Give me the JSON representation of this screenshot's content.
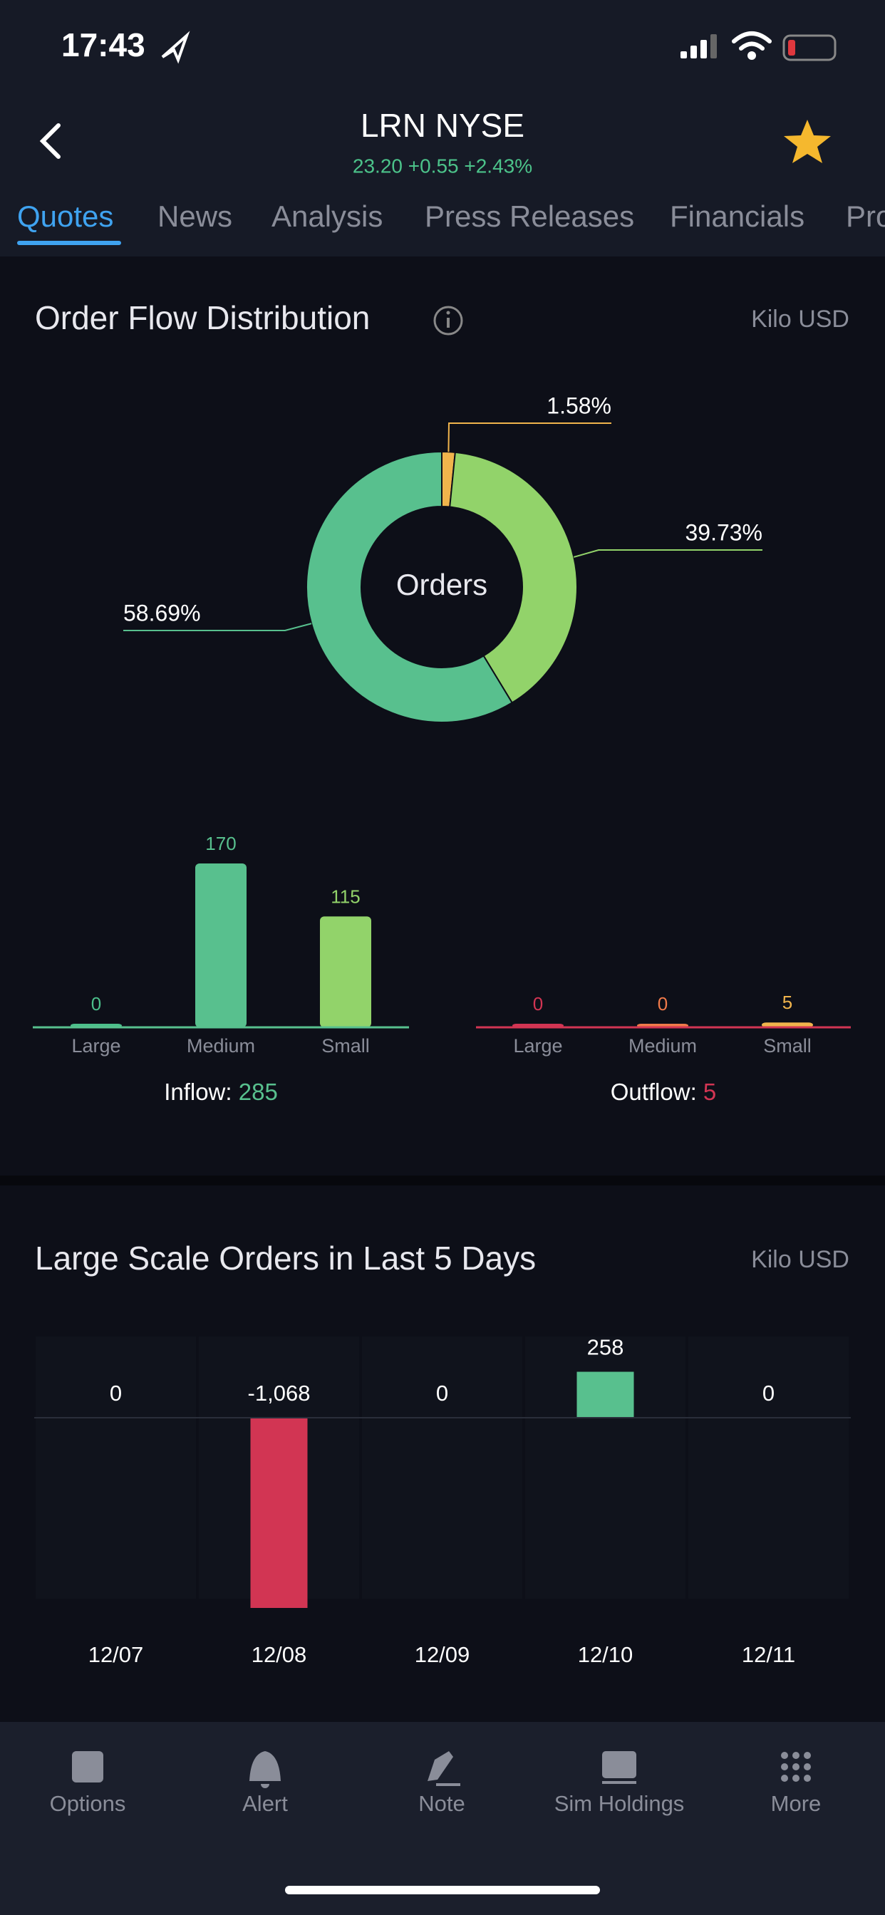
{
  "status_bar": {
    "time": "17:43"
  },
  "header": {
    "title": "LRN NYSE",
    "quote": "23.20 +0.55 +2.43%"
  },
  "tabs": [
    "Quotes",
    "News",
    "Analysis",
    "Press Releases",
    "Financials",
    "Pro"
  ],
  "order_flow": {
    "title": "Order Flow Distribution",
    "unit": "Kilo USD",
    "donut": {
      "type": "pie",
      "center_label": "Orders",
      "values": [
        1.58,
        39.73,
        58.69
      ],
      "value_labels": [
        "1.58%",
        "39.73%",
        "58.69%"
      ],
      "colors": [
        "#f0b44c",
        "#92d36a",
        "#58c08e"
      ]
    },
    "inflow": {
      "type": "bar",
      "categories": [
        "Large",
        "Medium",
        "Small"
      ],
      "values": [
        0,
        170,
        115
      ],
      "colors": [
        "#4cbf8b",
        "#58c08e",
        "#92d36a"
      ],
      "label": "Inflow:",
      "total": 285,
      "total_color": "#58c08e"
    },
    "outflow": {
      "type": "bar",
      "categories": [
        "Large",
        "Medium",
        "Small"
      ],
      "values": [
        0,
        0,
        5
      ],
      "colors": [
        "#d23553",
        "#f07a4a",
        "#f0b44c"
      ],
      "label": "Outflow:",
      "total": 5,
      "total_color": "#d23553"
    }
  },
  "large_orders": {
    "title": "Large Scale Orders in Last 5 Days",
    "unit": "Kilo USD",
    "type": "bar",
    "categories": [
      "12/07",
      "12/08",
      "12/09",
      "12/10",
      "12/11"
    ],
    "values": [
      0,
      -1068,
      0,
      258,
      0
    ],
    "value_labels": [
      "0",
      "-1,068",
      "0",
      "258",
      "0"
    ],
    "positive_color": "#58c08e",
    "negative_color": "#d23553"
  },
  "bottom_nav": [
    "Options",
    "Alert",
    "Note",
    "Sim Holdings",
    "More"
  ]
}
